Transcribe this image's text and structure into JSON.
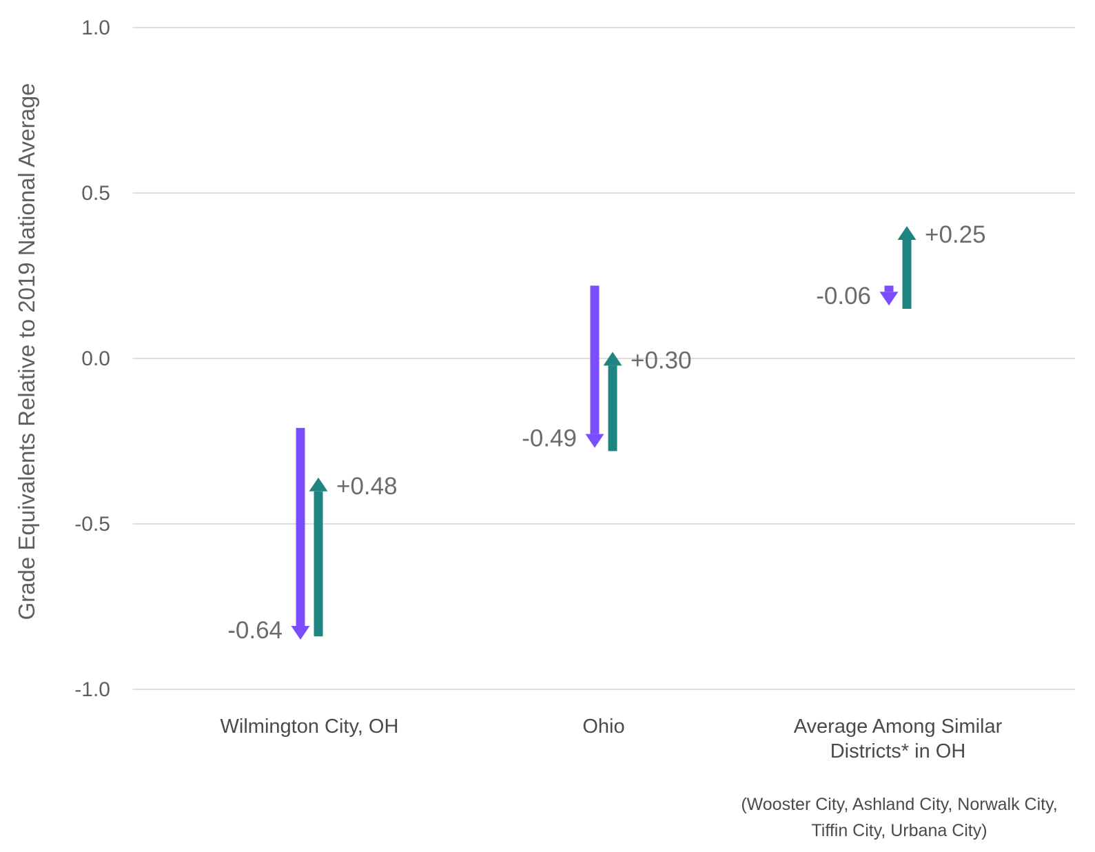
{
  "chart_data": {
    "type": "arrow",
    "ylabel": "Grade Equivalents Relative to 2019 National Average",
    "xlabel": "",
    "ylim": [
      -1.0,
      1.0
    ],
    "yticks": [
      1.0,
      0.5,
      0.0,
      -0.5,
      -1.0
    ],
    "ytick_labels": [
      "1.0",
      "0.5",
      "0.0",
      "-0.5",
      "-1.0"
    ],
    "grid": true,
    "categories": [
      {
        "lines": [
          "Wilmington City, OH"
        ]
      },
      {
        "lines": [
          "Ohio"
        ]
      },
      {
        "lines": [
          "Average Among Similar",
          "Districts* in OH"
        ]
      }
    ],
    "series": [
      {
        "color": "#7c4dff",
        "direction": "down",
        "values": [
          {
            "start": -0.21,
            "end": -0.85,
            "label": "-0.64"
          },
          {
            "start": 0.22,
            "end": -0.27,
            "label": "-0.49"
          },
          {
            "start": 0.22,
            "end": 0.16,
            "label": "-0.06"
          }
        ]
      },
      {
        "color": "#1f8580",
        "direction": "up",
        "values": [
          {
            "start": -0.84,
            "end": -0.36,
            "label": "+0.48"
          },
          {
            "start": -0.28,
            "end": 0.02,
            "label": "+0.30"
          },
          {
            "start": 0.15,
            "end": 0.4,
            "label": "+0.25"
          }
        ]
      }
    ],
    "footnote": [
      "(Wooster City, Ashland City, Norwalk City,",
      "Tiffin City, Urbana City)"
    ]
  }
}
